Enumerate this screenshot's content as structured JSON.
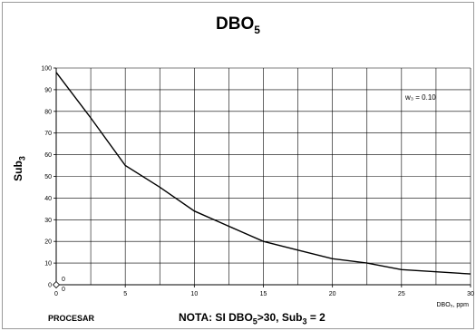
{
  "chart_data": {
    "type": "line",
    "title_main": "DBO",
    "title_sub": "5",
    "ylabel_main": "Sub",
    "ylabel_sub": "3",
    "xlabel": "DBO₅, ppm",
    "annotation": "w₃ = 0.10",
    "xlim": [
      0,
      30
    ],
    "ylim": [
      0,
      100
    ],
    "x_ticks": [
      0,
      5,
      10,
      15,
      20,
      25,
      30
    ],
    "y_ticks": [
      0,
      10,
      20,
      30,
      40,
      50,
      60,
      70,
      80,
      90,
      100
    ],
    "grid": true,
    "series": [
      {
        "x": [
          0,
          2.5,
          5,
          7.5,
          10,
          12.5,
          15,
          17.5,
          20,
          22.5,
          25,
          27.5,
          30
        ],
        "values": [
          98,
          77,
          55,
          45,
          34,
          27,
          20,
          16,
          12,
          10,
          7,
          6,
          5
        ]
      }
    ],
    "cursor_readout": {
      "x": "0",
      "y": "0"
    }
  },
  "footer": {
    "procesar_label": "PROCESAR",
    "nota_prefix": "NOTA: SI DBO",
    "nota_sub1": "5",
    "nota_mid": ">30, Sub",
    "nota_sub2": "3",
    "nota_suffix": " = 2"
  }
}
